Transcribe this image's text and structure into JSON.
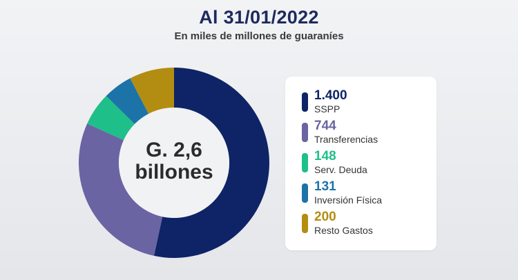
{
  "header": {
    "title": "Al 31/01/2022",
    "subtitle": "En miles de millones de guaraníes"
  },
  "center": {
    "line1": "G. 2,6",
    "line2": "billones"
  },
  "chart_data": {
    "type": "pie",
    "title": "Al 31/01/2022",
    "subtitle": "En miles de millones de guaraníes",
    "categories": [
      "SSPP",
      "Transferencias",
      "Serv. Deuda",
      "Inversión Física",
      "Resto Gastos"
    ],
    "values": [
      1400,
      744,
      148,
      131,
      200
    ],
    "value_labels": [
      "1.400",
      "744",
      "148",
      "131",
      "200"
    ],
    "colors": [
      "#0f2466",
      "#6a64a3",
      "#1fbf8a",
      "#1c73a8",
      "#b38d12"
    ],
    "legend_position": "right"
  }
}
